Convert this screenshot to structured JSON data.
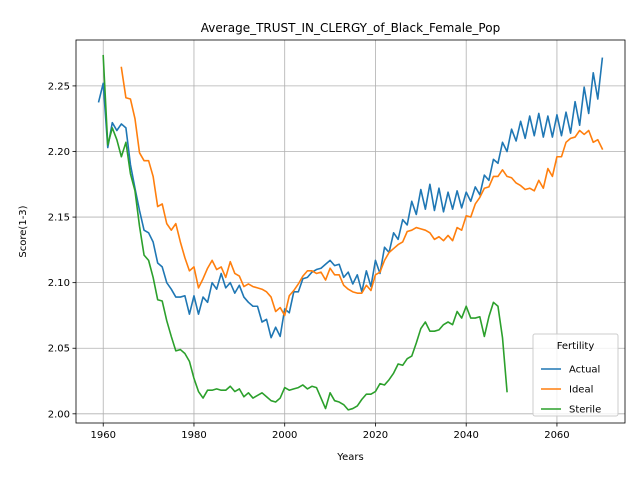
{
  "chart_data": {
    "type": "line",
    "title": "Average_TRUST_IN_CLERGY_of_Black_Female_Pop",
    "xlabel": "Years",
    "ylabel": "Score(1-3)",
    "xlim": [
      1954,
      2075
    ],
    "ylim": [
      1.993,
      2.285
    ],
    "x_ticks": [
      1960,
      1980,
      2000,
      2020,
      2040,
      2060
    ],
    "y_ticks": [
      2.0,
      2.05,
      2.1,
      2.15,
      2.2,
      2.25
    ],
    "y_tick_labels": [
      "2.00",
      "2.05",
      "2.10",
      "2.15",
      "2.20",
      "2.25"
    ],
    "grid": true,
    "legend": {
      "title": "Fertility",
      "placement": "lower-right"
    },
    "series": [
      {
        "name": "Actual",
        "color": "#1f77b4",
        "x": [
          1959,
          1960,
          1961,
          1962,
          1963,
          1964,
          1965,
          1966,
          1967,
          1968,
          1969,
          1970,
          1971,
          1972,
          1973,
          1974,
          1975,
          1976,
          1977,
          1978,
          1979,
          1980,
          1981,
          1982,
          1983,
          1984,
          1985,
          1986,
          1987,
          1988,
          1989,
          1990,
          1991,
          1992,
          1993,
          1994,
          1995,
          1996,
          1997,
          1998,
          1999,
          2000,
          2001,
          2002,
          2003,
          2004,
          2005,
          2006,
          2007,
          2008,
          2009,
          2010,
          2011,
          2012,
          2013,
          2014,
          2015,
          2016,
          2017,
          2018,
          2019,
          2020,
          2021,
          2022,
          2023,
          2024,
          2025,
          2026,
          2027,
          2028,
          2029,
          2030,
          2031,
          2032,
          2033,
          2034,
          2035,
          2036,
          2037,
          2038,
          2039,
          2040,
          2041,
          2042,
          2043,
          2044,
          2045,
          2046,
          2047,
          2048,
          2049,
          2050,
          2051,
          2052,
          2053,
          2054,
          2055,
          2056,
          2057,
          2058,
          2059,
          2060,
          2061,
          2062,
          2063,
          2064,
          2065,
          2066,
          2067,
          2068,
          2069,
          2070
        ],
        "values": [
          2.238,
          2.252,
          2.203,
          2.222,
          2.216,
          2.221,
          2.218,
          2.19,
          2.172,
          2.155,
          2.14,
          2.138,
          2.131,
          2.115,
          2.112,
          2.1,
          2.095,
          2.089,
          2.089,
          2.09,
          2.076,
          2.09,
          2.076,
          2.089,
          2.085,
          2.1,
          2.095,
          2.107,
          2.096,
          2.1,
          2.092,
          2.098,
          2.089,
          2.085,
          2.082,
          2.082,
          2.07,
          2.072,
          2.058,
          2.066,
          2.059,
          2.08,
          2.077,
          2.093,
          2.093,
          2.103,
          2.104,
          2.108,
          2.11,
          2.111,
          2.114,
          2.117,
          2.113,
          2.114,
          2.104,
          2.108,
          2.099,
          2.106,
          2.093,
          2.109,
          2.097,
          2.117,
          2.107,
          2.127,
          2.123,
          2.138,
          2.133,
          2.148,
          2.144,
          2.162,
          2.152,
          2.171,
          2.156,
          2.175,
          2.155,
          2.172,
          2.154,
          2.169,
          2.156,
          2.17,
          2.157,
          2.169,
          2.162,
          2.173,
          2.167,
          2.182,
          2.178,
          2.194,
          2.191,
          2.207,
          2.2,
          2.217,
          2.208,
          2.223,
          2.21,
          2.227,
          2.212,
          2.229,
          2.211,
          2.227,
          2.211,
          2.228,
          2.212,
          2.23,
          2.214,
          2.238,
          2.22,
          2.249,
          2.229,
          2.26,
          2.24,
          2.271
        ]
      },
      {
        "name": "Ideal",
        "color": "#ff7f0e",
        "x": [
          1964,
          1965,
          1966,
          1967,
          1968,
          1969,
          1970,
          1971,
          1972,
          1973,
          1974,
          1975,
          1976,
          1977,
          1978,
          1979,
          1980,
          1981,
          1982,
          1983,
          1984,
          1985,
          1986,
          1987,
          1988,
          1989,
          1990,
          1991,
          1992,
          1993,
          1994,
          1995,
          1996,
          1997,
          1998,
          1999,
          2000,
          2001,
          2002,
          2003,
          2004,
          2005,
          2006,
          2007,
          2008,
          2009,
          2010,
          2011,
          2012,
          2013,
          2014,
          2015,
          2016,
          2017,
          2018,
          2019,
          2020,
          2021,
          2022,
          2023,
          2024,
          2025,
          2026,
          2027,
          2028,
          2029,
          2030,
          2031,
          2032,
          2033,
          2034,
          2035,
          2036,
          2037,
          2038,
          2039,
          2040,
          2041,
          2042,
          2043,
          2044,
          2045,
          2046,
          2047,
          2048,
          2049,
          2050,
          2051,
          2052,
          2053,
          2054,
          2055,
          2056,
          2057,
          2058,
          2059,
          2060,
          2061,
          2062,
          2063,
          2064,
          2065,
          2066,
          2067,
          2068,
          2069,
          2070
        ],
        "values": [
          2.264,
          2.241,
          2.24,
          2.225,
          2.199,
          2.193,
          2.193,
          2.181,
          2.158,
          2.16,
          2.145,
          2.14,
          2.145,
          2.131,
          2.119,
          2.109,
          2.112,
          2.096,
          2.103,
          2.111,
          2.117,
          2.11,
          2.112,
          2.104,
          2.116,
          2.107,
          2.105,
          2.097,
          2.099,
          2.097,
          2.096,
          2.095,
          2.093,
          2.089,
          2.078,
          2.081,
          2.075,
          2.09,
          2.094,
          2.099,
          2.105,
          2.109,
          2.109,
          2.107,
          2.108,
          2.102,
          2.111,
          2.106,
          2.106,
          2.098,
          2.095,
          2.093,
          2.092,
          2.092,
          2.098,
          2.094,
          2.106,
          2.108,
          2.117,
          2.123,
          2.126,
          2.129,
          2.131,
          2.139,
          2.14,
          2.142,
          2.141,
          2.14,
          2.138,
          2.133,
          2.135,
          2.132,
          2.136,
          2.132,
          2.142,
          2.14,
          2.151,
          2.15,
          2.16,
          2.165,
          2.172,
          2.173,
          2.181,
          2.181,
          2.186,
          2.181,
          2.18,
          2.176,
          2.174,
          2.171,
          2.172,
          2.17,
          2.178,
          2.172,
          2.187,
          2.181,
          2.196,
          2.196,
          2.207,
          2.21,
          2.211,
          2.216,
          2.213,
          2.216,
          2.207,
          2.209,
          2.202
        ]
      },
      {
        "name": "Sterile",
        "color": "#2ca02c",
        "x": [
          1960,
          1961,
          1962,
          1963,
          1964,
          1965,
          1966,
          1967,
          1968,
          1969,
          1970,
          1971,
          1972,
          1973,
          1974,
          1975,
          1976,
          1977,
          1978,
          1979,
          1980,
          1981,
          1982,
          1983,
          1984,
          1985,
          1986,
          1987,
          1988,
          1989,
          1990,
          1991,
          1992,
          1993,
          1994,
          1995,
          1996,
          1997,
          1998,
          1999,
          2000,
          2001,
          2002,
          2003,
          2004,
          2005,
          2006,
          2007,
          2008,
          2009,
          2010,
          2011,
          2012,
          2013,
          2014,
          2015,
          2016,
          2017,
          2018,
          2019,
          2020,
          2021,
          2022,
          2023,
          2024,
          2025,
          2026,
          2027,
          2028,
          2029,
          2030,
          2031,
          2032,
          2033,
          2034,
          2035,
          2036,
          2037,
          2038,
          2039,
          2040,
          2041,
          2042,
          2043,
          2044,
          2045,
          2046,
          2047,
          2048,
          2049
        ],
        "values": [
          2.273,
          2.205,
          2.218,
          2.209,
          2.196,
          2.207,
          2.183,
          2.17,
          2.143,
          2.121,
          2.117,
          2.104,
          2.087,
          2.086,
          2.071,
          2.059,
          2.048,
          2.049,
          2.046,
          2.04,
          2.027,
          2.017,
          2.012,
          2.018,
          2.018,
          2.019,
          2.018,
          2.018,
          2.021,
          2.017,
          2.019,
          2.013,
          2.016,
          2.012,
          2.014,
          2.016,
          2.013,
          2.01,
          2.009,
          2.012,
          2.02,
          2.018,
          2.019,
          2.02,
          2.022,
          2.019,
          2.021,
          2.02,
          2.012,
          2.004,
          2.016,
          2.01,
          2.009,
          2.007,
          2.003,
          2.004,
          2.006,
          2.011,
          2.015,
          2.015,
          2.017,
          2.023,
          2.022,
          2.026,
          2.031,
          2.038,
          2.037,
          2.042,
          2.044,
          2.054,
          2.065,
          2.07,
          2.063,
          2.063,
          2.064,
          2.068,
          2.07,
          2.068,
          2.078,
          2.073,
          2.082,
          2.073,
          2.073,
          2.074,
          2.059,
          2.074,
          2.085,
          2.082,
          2.058,
          2.017
        ]
      }
    ]
  }
}
